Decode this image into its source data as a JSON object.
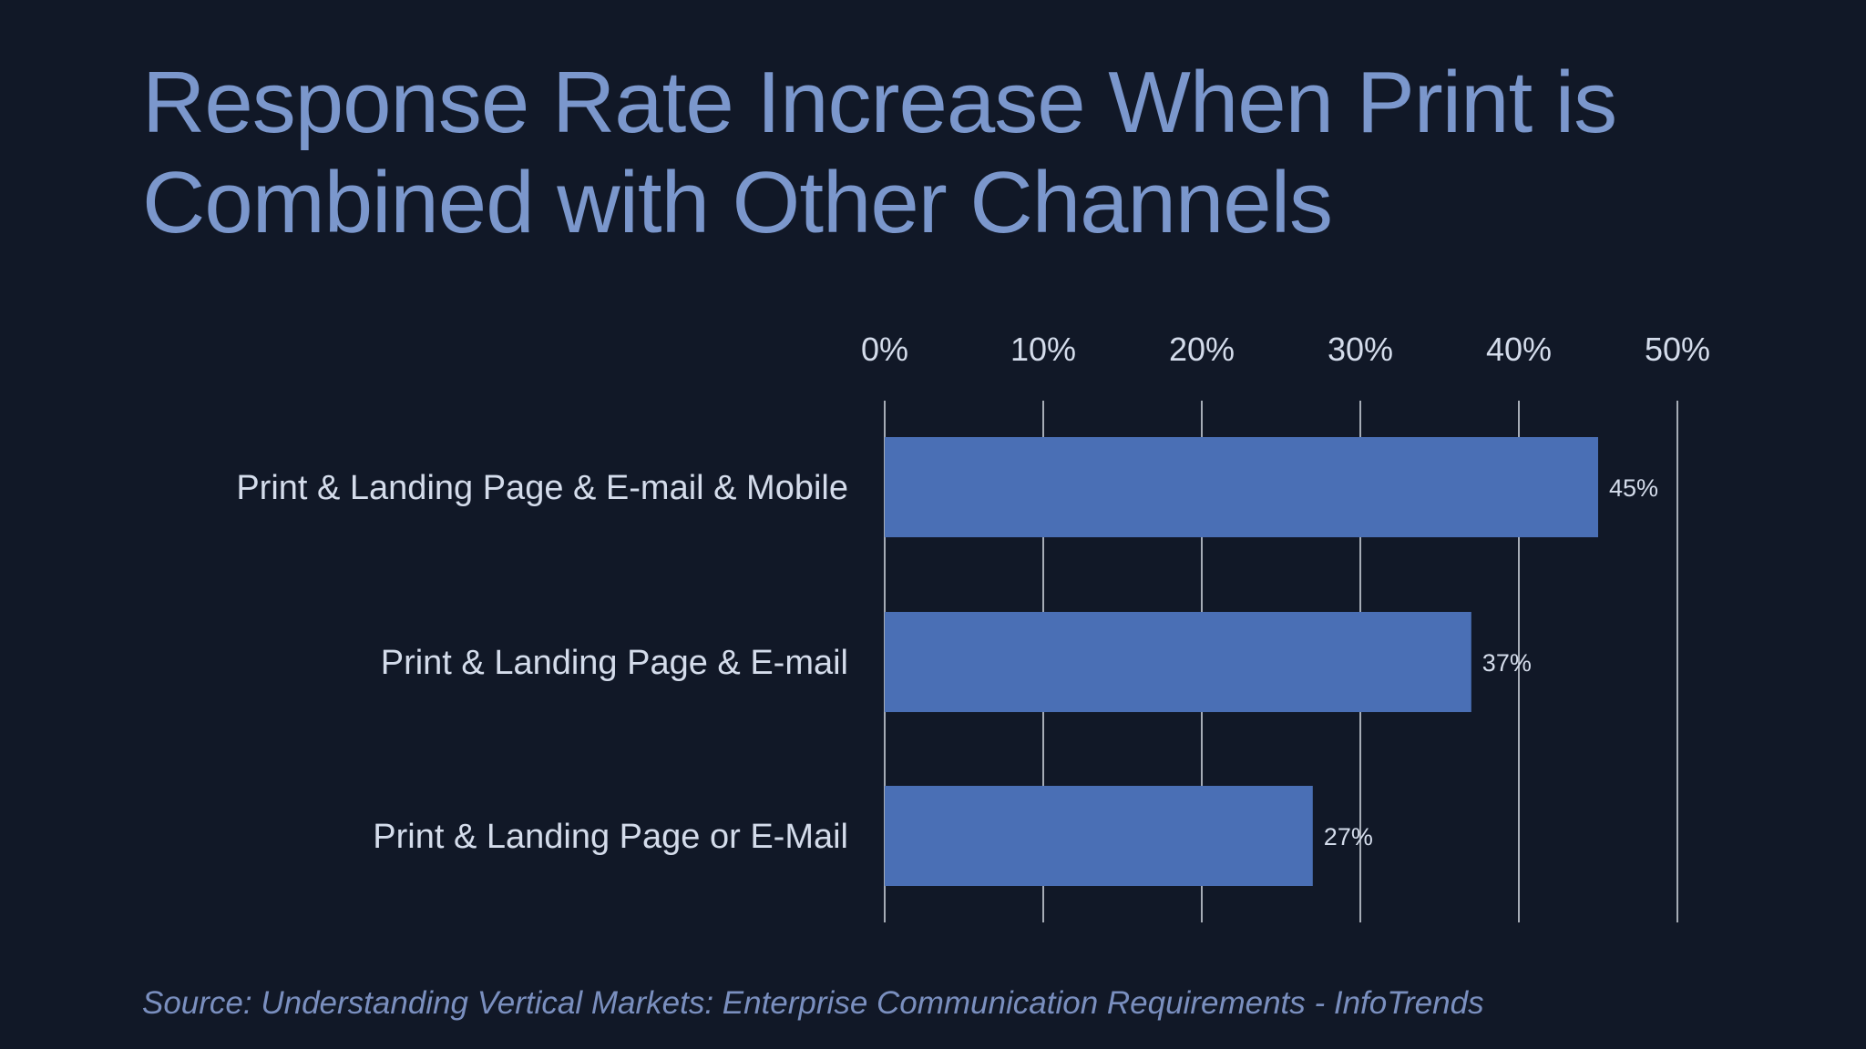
{
  "title": "Response Rate Increase When Print is Combined with Other Channels",
  "source": "Source: Understanding Vertical Markets: Enterprise Communication Requirements - InfoTrends",
  "colors": {
    "background": "#111827",
    "title": "#7b97cc",
    "bar": "#4a6fb5",
    "text": "#d4dceb",
    "gridline": "#d8dde6",
    "source": "#7a8fbf"
  },
  "chart_data": {
    "type": "bar",
    "orientation": "horizontal",
    "categories": [
      "Print & Landing Page & E-mail & Mobile",
      "Print & Landing Page & E-mail",
      "Print & Landing Page or E-Mail"
    ],
    "values": [
      45,
      37,
      27
    ],
    "value_labels": [
      "45%",
      "37%",
      "27%"
    ],
    "xlim": [
      0,
      50
    ],
    "ticks": [
      0,
      10,
      20,
      30,
      40,
      50
    ],
    "tick_labels": [
      "0%",
      "10%",
      "20%",
      "30%",
      "40%",
      "50%"
    ],
    "axis_position": "top",
    "grid": true,
    "legend": "none"
  }
}
